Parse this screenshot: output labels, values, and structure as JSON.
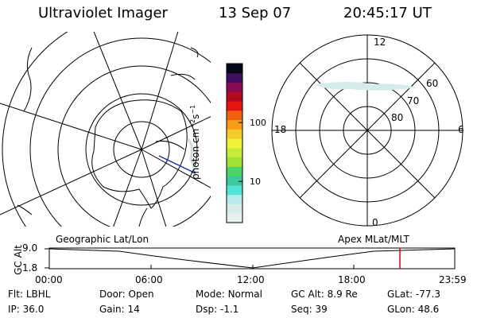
{
  "header": {
    "instrument": "Ultraviolet Imager",
    "date": "13 Sep 07",
    "time": "20:45:17 UT"
  },
  "colorbar": {
    "unit_label": "photon cm",
    "unit_sup1": "−2",
    "unit_mid": "s",
    "unit_sup2": "−1",
    "tick_labels": [
      "100",
      "10"
    ],
    "tick_values": [
      100,
      10
    ],
    "range": [
      2,
      1000
    ],
    "scale": "log",
    "colors": [
      "#e8f0ee",
      "#d8eeea",
      "#b7ecec",
      "#52e2dc",
      "#3ec89f",
      "#4bd46a",
      "#9ce334",
      "#c8ec3a",
      "#f2f23a",
      "#f5cc2a",
      "#f89a1a",
      "#f06010",
      "#e21510",
      "#b30a1e",
      "#880a55",
      "#3e0f60",
      "#050518"
    ]
  },
  "polar_plot": {
    "mlt_labels": {
      "top": "12",
      "left": "18",
      "right": "6",
      "bottom": "0"
    },
    "lat_labels": [
      "60",
      "70",
      "80"
    ]
  },
  "timeline": {
    "left_title": "Geographic Lat/Lon",
    "right_title": "Apex MLat/MLT",
    "ylabel": "GC Alt",
    "y_ticks": [
      "9.0",
      "1.8"
    ],
    "x_ticks": [
      "00:00",
      "06:00",
      "12:00",
      "18:00",
      "23:59"
    ],
    "marker_time": "20:45",
    "marker_color": "#e00000"
  },
  "info": {
    "row1": [
      {
        "key": "Flt:",
        "value": "LBHL"
      },
      {
        "key": "Door:",
        "value": "Open"
      },
      {
        "key": "Mode:",
        "value": "Normal"
      },
      {
        "key": "GC Alt:",
        "value": "8.9 Re"
      },
      {
        "key": "GLat:",
        "value": "-77.3"
      }
    ],
    "row2": [
      {
        "key": "IP:",
        "value": "36.0"
      },
      {
        "key": "Gain:",
        "value": "14"
      },
      {
        "key": "Dsp:",
        "value": "-1.1"
      },
      {
        "key": "Seq:",
        "value": "39"
      },
      {
        "key": "GLon:",
        "value": "48.6"
      }
    ]
  }
}
